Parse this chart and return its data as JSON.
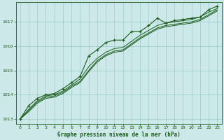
{
  "title": "Graphe pression niveau de la mer (hPa)",
  "background_color": "#cce8e8",
  "plot_bg_color": "#cce8e8",
  "grid_color": "#99cccc",
  "line_color": "#1a5c1a",
  "xlabel": "Graphe pression niveau de la mer (hPa)",
  "ylim": [
    1012.8,
    1017.8
  ],
  "xlim": [
    -0.5,
    23.5
  ],
  "yticks": [
    1013,
    1014,
    1015,
    1016,
    1017
  ],
  "xticks": [
    0,
    1,
    2,
    3,
    4,
    5,
    6,
    7,
    8,
    9,
    10,
    11,
    12,
    13,
    14,
    15,
    16,
    17,
    18,
    19,
    20,
    21,
    22,
    23
  ],
  "series_with_marker": [
    1013.0,
    1013.55,
    1013.85,
    1014.0,
    1014.05,
    1014.25,
    1014.5,
    1014.75,
    1015.6,
    1015.85,
    1016.15,
    1016.25,
    1016.25,
    1016.6,
    1016.6,
    1016.85,
    1017.15,
    1016.95,
    1017.05,
    1017.1,
    1017.15,
    1017.2,
    1017.5,
    1017.65
  ],
  "series_plain": [
    [
      1013.0,
      1013.4,
      1013.75,
      1013.95,
      1014.0,
      1014.15,
      1014.4,
      1014.65,
      1015.15,
      1015.5,
      1015.75,
      1015.9,
      1015.95,
      1016.2,
      1016.45,
      1016.65,
      1016.85,
      1016.95,
      1017.0,
      1017.05,
      1017.1,
      1017.2,
      1017.4,
      1017.55
    ],
    [
      1013.0,
      1013.35,
      1013.7,
      1013.9,
      1013.95,
      1014.1,
      1014.35,
      1014.55,
      1015.0,
      1015.4,
      1015.65,
      1015.8,
      1015.85,
      1016.1,
      1016.35,
      1016.55,
      1016.75,
      1016.85,
      1016.9,
      1016.95,
      1017.0,
      1017.1,
      1017.3,
      1017.5
    ],
    [
      1013.0,
      1013.3,
      1013.65,
      1013.85,
      1013.9,
      1014.05,
      1014.3,
      1014.5,
      1014.95,
      1015.35,
      1015.6,
      1015.75,
      1015.8,
      1016.05,
      1016.3,
      1016.5,
      1016.7,
      1016.8,
      1016.85,
      1016.9,
      1016.95,
      1017.05,
      1017.25,
      1017.45
    ]
  ]
}
